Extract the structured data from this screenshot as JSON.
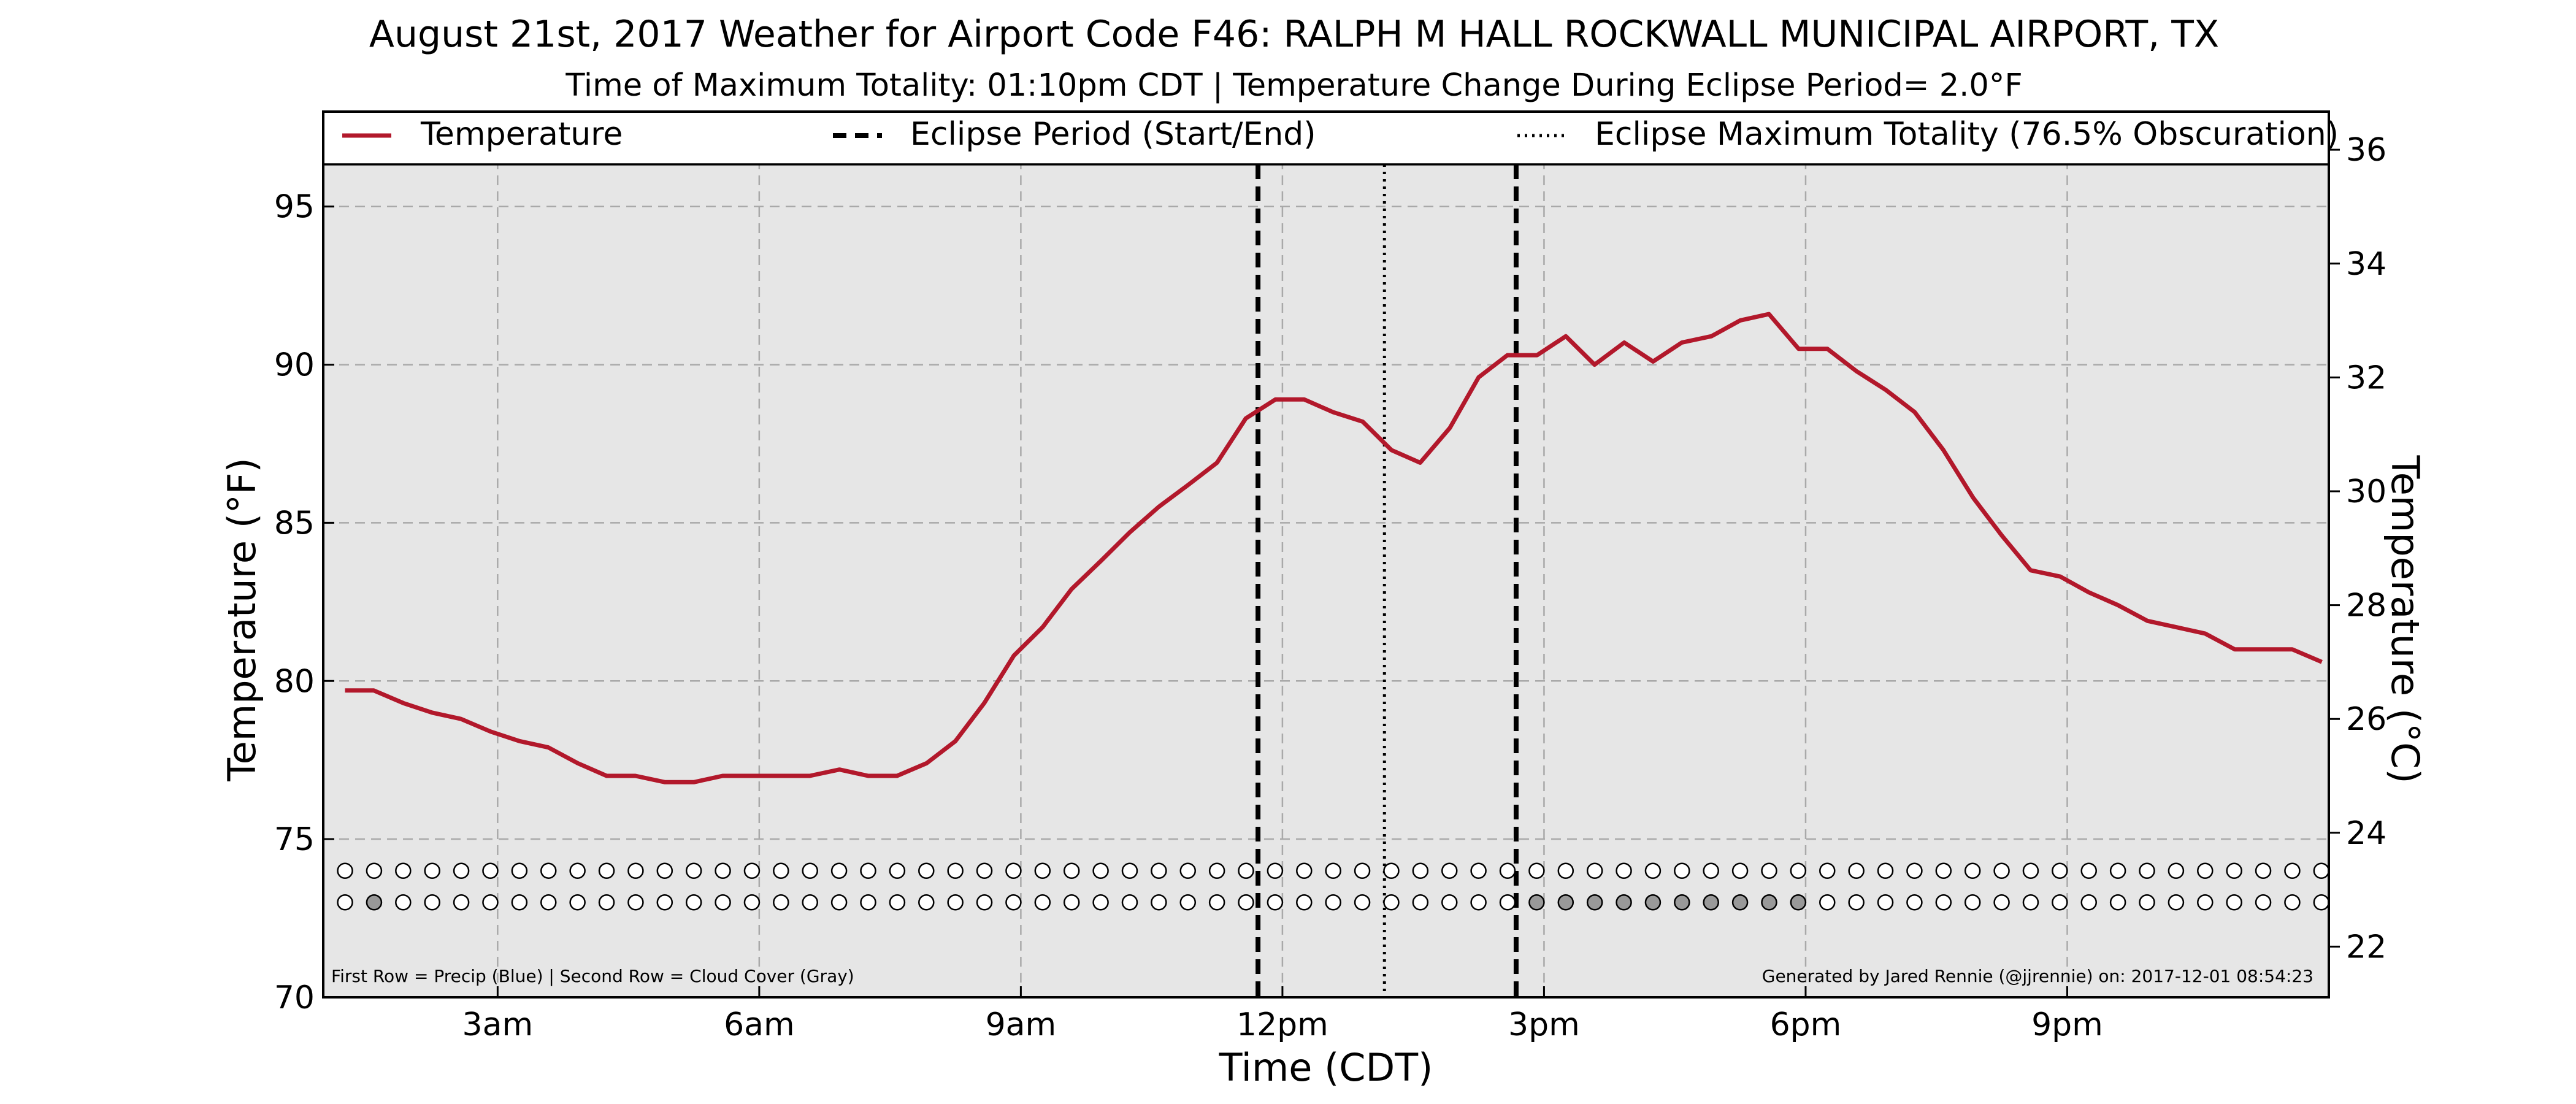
{
  "chart_data": {
    "type": "line",
    "title": "August 21st, 2017 Weather for Airport Code F46: RALPH M HALL ROCKWALL MUNICIPAL AIRPORT, TX",
    "subtitle": "Time of Maximum Totality: 01:10pm CDT | Temperature Change During Eclipse Period= 2.0°F",
    "xlabel": "Time (CDT)",
    "ylabel": "Temperature (°F)",
    "ylabel_right": "Temperature (°C)",
    "xlim": [
      1.0,
      24.0
    ],
    "ylim": [
      70,
      98
    ],
    "ylim_right": [
      21.11,
      36.67
    ],
    "x_ticks": [
      {
        "value": 3,
        "label": "3am"
      },
      {
        "value": 6,
        "label": "6am"
      },
      {
        "value": 9,
        "label": "9am"
      },
      {
        "value": 12,
        "label": "12pm"
      },
      {
        "value": 15,
        "label": "3pm"
      },
      {
        "value": 18,
        "label": "6pm"
      },
      {
        "value": 21,
        "label": "9pm"
      }
    ],
    "y_ticks": [
      70,
      75,
      80,
      85,
      90,
      95
    ],
    "y_ticks_right": [
      22,
      24,
      26,
      28,
      30,
      32,
      34,
      36
    ],
    "grid": true,
    "legend_position": "top",
    "series": [
      {
        "name": "Temperature",
        "color": "#b2182b",
        "style": "solid",
        "x": [
          1.25,
          1.58,
          1.92,
          2.25,
          2.58,
          2.92,
          3.25,
          3.58,
          3.92,
          4.25,
          4.58,
          4.92,
          5.25,
          5.58,
          5.92,
          6.25,
          6.58,
          6.92,
          7.25,
          7.58,
          7.92,
          8.25,
          8.58,
          8.92,
          9.25,
          9.58,
          9.92,
          10.25,
          10.58,
          10.92,
          11.25,
          11.58,
          11.92,
          12.25,
          12.58,
          12.92,
          13.25,
          13.58,
          13.92,
          14.25,
          14.58,
          14.92,
          15.25,
          15.58,
          15.92,
          16.25,
          16.58,
          16.92,
          17.25,
          17.58,
          17.92,
          18.25,
          18.58,
          18.92,
          19.25,
          19.58,
          19.92,
          20.25,
          20.58,
          20.92,
          21.25,
          21.58,
          21.92,
          22.25,
          22.58,
          22.92,
          23.25,
          23.58,
          23.92
        ],
        "values": [
          79.7,
          79.7,
          79.3,
          79.0,
          78.8,
          78.4,
          78.1,
          77.9,
          77.4,
          77.0,
          77.0,
          76.8,
          76.8,
          77.0,
          77.0,
          77.0,
          77.0,
          77.2,
          77.0,
          77.0,
          77.4,
          78.1,
          79.3,
          80.8,
          81.7,
          82.9,
          83.8,
          84.7,
          85.5,
          86.2,
          86.9,
          88.3,
          88.9,
          88.9,
          88.5,
          88.2,
          87.3,
          86.9,
          88.0,
          89.6,
          90.3,
          90.3,
          90.9,
          90.0,
          90.7,
          90.1,
          90.7,
          90.9,
          91.4,
          91.6,
          90.5,
          90.5,
          89.8,
          89.2,
          88.5,
          87.3,
          85.8,
          84.6,
          83.5,
          83.3,
          82.8,
          82.4,
          81.9,
          81.7,
          81.5,
          81.0,
          81.0,
          81.0,
          80.6
        ]
      },
      {
        "name": "Eclipse Period (Start/End)",
        "color": "#000000",
        "style": "dashed",
        "x": [
          11.72,
          14.68
        ]
      },
      {
        "name": "Eclipse Maximum Totality (76.5% Obscuration)",
        "color": "#000000",
        "style": "dotted",
        "x": [
          13.17
        ]
      }
    ],
    "marker_rows": {
      "start": 1.25,
      "step": 0.3333,
      "count": 69,
      "precip_y": 74.0,
      "cloud_y": 73.0,
      "precip_color": "#1f3fbf",
      "cloud_color": "#999999",
      "cloud_filled_indices": [
        1,
        41,
        42,
        43,
        44,
        45,
        46,
        47,
        48,
        49,
        50
      ],
      "precip_filled_indices": []
    },
    "annotations": {
      "left": "First Row = Precip (Blue) | Second Row = Cloud Cover (Gray)",
      "right": "Generated by Jared Rennie (@jjrennie) on: 2017-12-01 08:54:23"
    }
  }
}
